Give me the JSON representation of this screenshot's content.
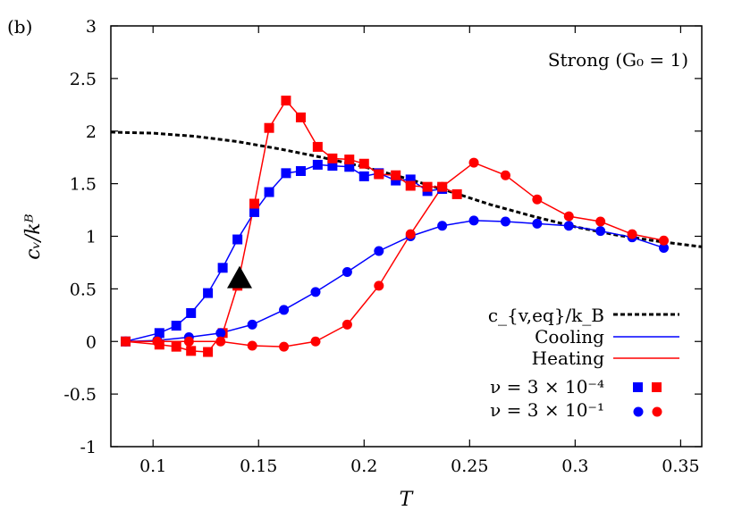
{
  "chart_data": {
    "type": "scatter",
    "panel_label": "(b)",
    "annotation": "Strong (G₀ = 1)",
    "xlabel": "T",
    "ylabel": "cᵥ/kᴮ",
    "xlim": [
      0.08,
      0.36
    ],
    "ylim": [
      -1,
      3
    ],
    "xticks": [
      0.1,
      0.15,
      0.2,
      0.25,
      0.3,
      0.35
    ],
    "xtick_labels": [
      "0.1",
      "0.15",
      "0.2",
      "0.25",
      "0.3",
      "0.35"
    ],
    "yticks": [
      -1,
      -0.5,
      0,
      0.5,
      1,
      1.5,
      2,
      2.5,
      3
    ],
    "ytick_labels": [
      "-1",
      "-0.5",
      "0",
      "0.5",
      "1",
      "1.5",
      "2",
      "2.5",
      "3"
    ],
    "colors": {
      "cooling": "#0000ff",
      "heating": "#ff0000",
      "equilibrium": "#000000",
      "marker": "#000000"
    },
    "legend": {
      "placement": "bottom-right",
      "items": [
        {
          "label": "c_{v,eq}/k_B",
          "style": "dashed-black"
        },
        {
          "label": "Cooling",
          "style": "solid-blue"
        },
        {
          "label": "Heating",
          "style": "solid-red"
        },
        {
          "label": "ν = 3 × 10⁻⁴",
          "style": "squares"
        },
        {
          "label": "ν = 3 × 10⁻¹",
          "style": "circles"
        }
      ]
    },
    "equilibrium": {
      "name": "c_{v,eq}/k_B",
      "x": [
        0.08,
        0.1,
        0.12,
        0.14,
        0.16,
        0.18,
        0.2,
        0.22,
        0.24,
        0.26,
        0.28,
        0.3,
        0.32,
        0.34,
        0.36
      ],
      "y": [
        1.99,
        1.98,
        1.95,
        1.9,
        1.83,
        1.75,
        1.66,
        1.55,
        1.43,
        1.3,
        1.19,
        1.09,
        1.01,
        0.95,
        0.9
      ]
    },
    "series": [
      {
        "name": "Cooling",
        "rate": "ν = 3 × 10⁻⁴",
        "marker": "square",
        "color": "blue",
        "x": [
          0.087,
          0.103,
          0.111,
          0.118,
          0.126,
          0.133,
          0.14,
          0.148,
          0.155,
          0.163,
          0.17,
          0.178,
          0.185,
          0.193,
          0.2,
          0.207,
          0.215,
          0.222,
          0.23,
          0.237
        ],
        "y": [
          0.0,
          0.08,
          0.15,
          0.27,
          0.46,
          0.7,
          0.97,
          1.23,
          1.42,
          1.6,
          1.62,
          1.68,
          1.67,
          1.66,
          1.57,
          1.6,
          1.53,
          1.54,
          1.43,
          1.45
        ]
      },
      {
        "name": "Heating",
        "rate": "ν = 3 × 10⁻⁴",
        "marker": "square",
        "color": "red",
        "x": [
          0.087,
          0.103,
          0.111,
          0.118,
          0.126,
          0.133,
          0.14,
          0.148,
          0.155,
          0.163,
          0.17,
          0.178,
          0.185,
          0.193,
          0.2,
          0.207,
          0.215,
          0.222,
          0.23,
          0.237,
          0.244
        ],
        "y": [
          0.0,
          -0.03,
          -0.05,
          -0.09,
          -0.1,
          0.08,
          0.53,
          1.31,
          2.03,
          2.29,
          2.13,
          1.85,
          1.74,
          1.73,
          1.69,
          1.59,
          1.58,
          1.48,
          1.47,
          1.47,
          1.4
        ]
      },
      {
        "name": "Cooling",
        "rate": "ν = 3 × 10⁻¹",
        "marker": "circle",
        "color": "blue",
        "x": [
          0.087,
          0.102,
          0.117,
          0.132,
          0.147,
          0.162,
          0.177,
          0.192,
          0.207,
          0.222,
          0.237,
          0.252,
          0.267,
          0.282,
          0.297,
          0.312,
          0.327,
          0.342
        ],
        "y": [
          0.0,
          0.01,
          0.04,
          0.08,
          0.16,
          0.3,
          0.47,
          0.66,
          0.86,
          1.0,
          1.1,
          1.15,
          1.14,
          1.12,
          1.1,
          1.05,
          0.99,
          0.89
        ]
      },
      {
        "name": "Heating",
        "rate": "ν = 3 × 10⁻¹",
        "marker": "circle",
        "color": "red",
        "x": [
          0.087,
          0.102,
          0.117,
          0.132,
          0.147,
          0.162,
          0.177,
          0.192,
          0.207,
          0.222,
          0.237,
          0.252,
          0.267,
          0.282,
          0.297,
          0.312,
          0.327,
          0.342
        ],
        "y": [
          0.0,
          0.0,
          0.0,
          0.0,
          -0.04,
          -0.05,
          0.0,
          0.16,
          0.53,
          1.02,
          1.47,
          1.7,
          1.58,
          1.35,
          1.19,
          1.14,
          1.02,
          0.96
        ]
      }
    ],
    "marker_point": {
      "x": 0.141,
      "y": 0.6,
      "shape": "triangle"
    }
  }
}
